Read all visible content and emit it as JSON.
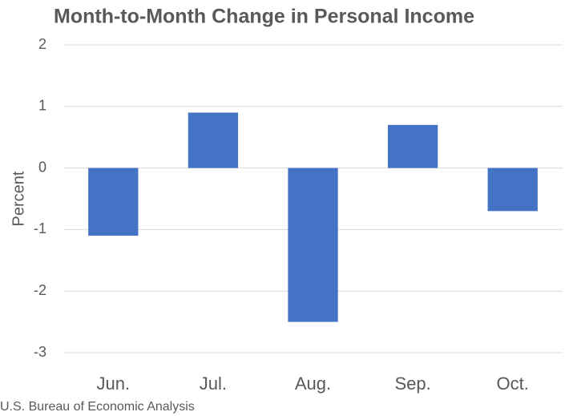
{
  "chart_data": {
    "type": "bar",
    "title": "Month-to-Month Change in Personal Income",
    "y_label": "Percent",
    "source": "U.S. Bureau of Economic Analysis",
    "categories": [
      "Jun.",
      "Jul.",
      "Aug.",
      "Sep.",
      "Oct."
    ],
    "values": [
      -1.1,
      0.9,
      -2.5,
      0.7,
      -0.7
    ],
    "color": "#4472c4",
    "ylim": [
      -3,
      2
    ],
    "yticks": [
      -3,
      -2,
      -1,
      0,
      1,
      2
    ],
    "grid": true
  }
}
